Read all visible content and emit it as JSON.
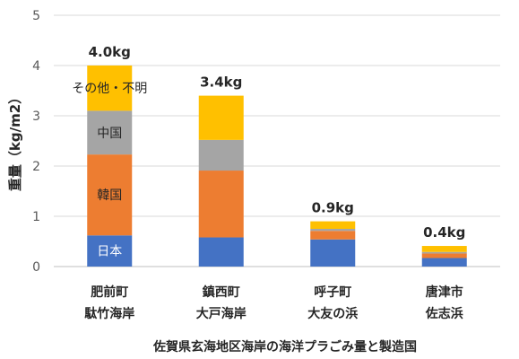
{
  "chart_data": {
    "type": "bar",
    "stacked": true,
    "title": "佐賀県玄海地区海岸の海洋プラごみ量と製造国",
    "ylabel": "重量（kg/m2）",
    "xlabel": "",
    "ylim": [
      0,
      5
    ],
    "yticks": [
      "0",
      "1",
      "2",
      "3",
      "4",
      "5"
    ],
    "grid": true,
    "categories": [
      {
        "line1": "肥前町",
        "line2": "駄竹海岸"
      },
      {
        "line1": "鎮西町",
        "line2": "大戸海岸"
      },
      {
        "line1": "呼子町",
        "line2": "大友の浜"
      },
      {
        "line1": "唐津市",
        "line2": "佐志浜"
      }
    ],
    "totals": [
      "4.0kg",
      "3.4kg",
      "0.9kg",
      "0.4kg"
    ],
    "series": [
      {
        "name": "日本",
        "color": "#4472c4",
        "values": [
          0.62,
          0.58,
          0.54,
          0.17
        ]
      },
      {
        "name": "韓国",
        "color": "#ed7d31",
        "values": [
          1.61,
          1.33,
          0.17,
          0.09
        ]
      },
      {
        "name": "中国",
        "color": "#a5a5a5",
        "values": [
          0.87,
          0.61,
          0.04,
          0.03
        ]
      },
      {
        "name": "その他・不明",
        "color": "#ffc000",
        "values": [
          0.9,
          0.88,
          0.15,
          0.12
        ]
      }
    ]
  }
}
